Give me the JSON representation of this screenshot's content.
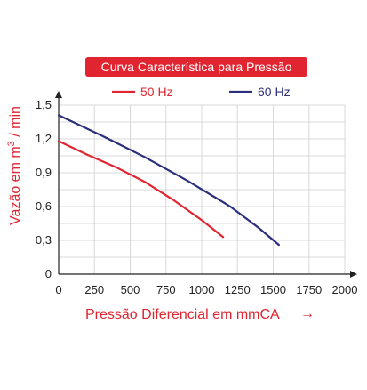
{
  "chart_data": {
    "type": "line",
    "title": "Curva Característica para Pressão",
    "xlabel": "Pressão Diferencial em mmCA",
    "xlabel_arrow": "→",
    "ylabel": "Vazão em m",
    "ylabel_sup": "3",
    "ylabel_suffix": " / min",
    "xlim": [
      0,
      2000
    ],
    "ylim": [
      0,
      1.5
    ],
    "xticks": [
      "0",
      "250",
      "500",
      "750",
      "1000",
      "1250",
      "1500",
      "1750",
      "2000"
    ],
    "xtick_values": [
      0,
      250,
      500,
      750,
      1000,
      1250,
      1500,
      1750,
      2000
    ],
    "yticks": [
      "0",
      "0,3",
      "0,6",
      "0,9",
      "1,2",
      "1,5"
    ],
    "ytick_values": [
      0,
      0.3,
      0.6,
      0.9,
      1.2,
      1.5
    ],
    "grid": true,
    "legend_position": "top",
    "series": [
      {
        "name": "50 Hz",
        "color": "#e02430",
        "x": [
          0,
          200,
          400,
          600,
          800,
          1000,
          1150
        ],
        "y": [
          1.18,
          1.06,
          0.95,
          0.82,
          0.66,
          0.48,
          0.33
        ]
      },
      {
        "name": "60 Hz",
        "color": "#2b2f7a",
        "x": [
          0,
          300,
          600,
          900,
          1200,
          1400,
          1540
        ],
        "y": [
          1.41,
          1.23,
          1.04,
          0.83,
          0.6,
          0.41,
          0.26
        ]
      }
    ]
  }
}
